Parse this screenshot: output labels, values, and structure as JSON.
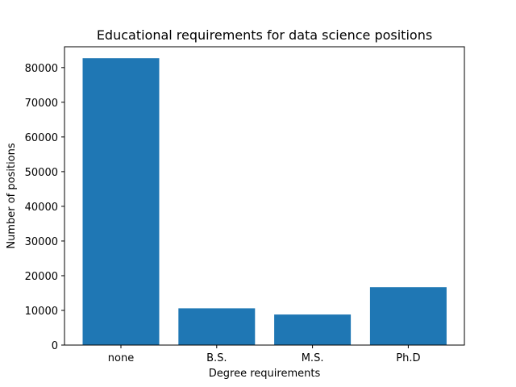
{
  "chart_data": {
    "type": "bar",
    "title": "Educational requirements for data science positions",
    "xlabel": "Degree requirements",
    "ylabel": "Number of positions",
    "categories": [
      "none",
      "B.S.",
      "M.S.",
      "Ph.D"
    ],
    "values": [
      82700,
      10600,
      8800,
      16700
    ],
    "ylim": [
      0,
      86000
    ],
    "yticks": [
      0,
      10000,
      20000,
      30000,
      40000,
      50000,
      60000,
      70000,
      80000
    ],
    "ytick_labels": [
      "0",
      "10000",
      "20000",
      "30000",
      "40000",
      "50000",
      "60000",
      "70000",
      "80000"
    ],
    "bar_color": "#1f77b4",
    "grid": false,
    "legend": "none"
  }
}
